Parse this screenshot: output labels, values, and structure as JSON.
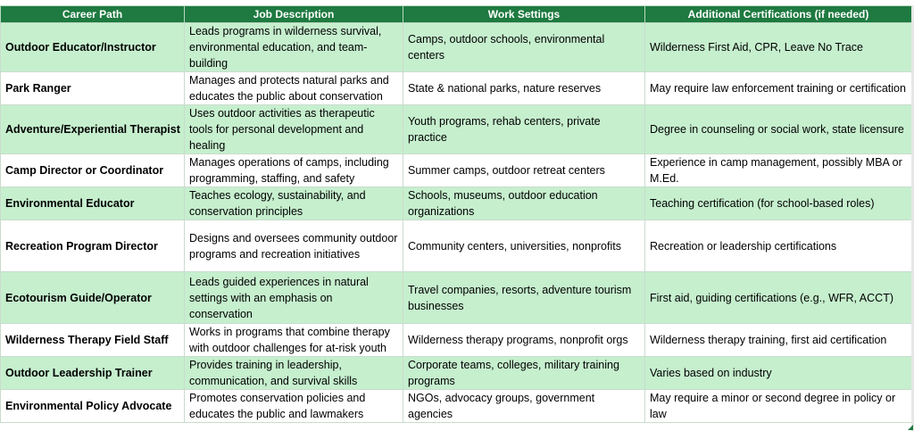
{
  "table": {
    "headers": [
      "Career Path",
      "Job Description",
      "Work Settings",
      "Additional Certifications (if needed)"
    ],
    "rows": [
      {
        "career": "Outdoor Educator/Instructor",
        "description": "Leads programs in wilderness survival, environmental education, and team-building",
        "settings": "Camps, outdoor schools, environmental centers",
        "certifications": "Wilderness First Aid, CPR, Leave No Trace",
        "shade": "green"
      },
      {
        "career": "Park Ranger",
        "description": "Manages and protects natural parks and educates the public about conservation",
        "settings": "State & national parks, nature reserves",
        "certifications": "May require law enforcement training or certification",
        "shade": "white"
      },
      {
        "career": "Adventure/Experiential Therapist",
        "description": "Uses outdoor activities as therapeutic tools for personal development and healing",
        "settings": "Youth programs, rehab centers, private practice",
        "certifications": "Degree in counseling or social work, state licensure",
        "shade": "green"
      },
      {
        "career": "Camp Director or Coordinator",
        "description": "Manages operations of camps, including programming, staffing, and safety",
        "settings": "Summer camps, outdoor retreat centers",
        "certifications": "Experience in camp management, possibly MBA or M.Ed.",
        "shade": "white"
      },
      {
        "career": "Environmental Educator",
        "description": "Teaches ecology, sustainability, and conservation principles",
        "settings": "Schools, museums, outdoor education organizations",
        "certifications": "Teaching certification (for school-based roles)",
        "shade": "green"
      },
      {
        "career": "Recreation Program Director",
        "description": "Designs and oversees community outdoor programs and recreation initiatives",
        "settings": "Community centers, universities, nonprofits",
        "certifications": "Recreation or leadership certifications",
        "shade": "white"
      },
      {
        "career": "Ecotourism Guide/Operator",
        "description": "Leads guided experiences in natural settings with an emphasis on conservation",
        "settings": "Travel companies, resorts, adventure tourism businesses",
        "certifications": "First aid, guiding certifications (e.g., WFR, ACCT)",
        "shade": "green"
      },
      {
        "career": "Wilderness Therapy Field Staff",
        "description": "Works in programs that combine therapy with outdoor challenges for at-risk youth",
        "settings": "Wilderness therapy programs, nonprofit orgs",
        "certifications": "Wilderness therapy training, first aid certification",
        "shade": "white"
      },
      {
        "career": "Outdoor Leadership Trainer",
        "description": "Provides training in leadership, communication, and survival skills",
        "settings": "Corporate teams, colleges, military training programs",
        "certifications": "Varies based on industry",
        "shade": "green"
      },
      {
        "career": "Environmental Policy Advocate",
        "description": "Promotes conservation policies and educates the public and lawmakers",
        "settings": "NGOs, advocacy groups, government agencies",
        "certifications": "May require a minor or second degree in policy or law",
        "shade": "white"
      }
    ]
  },
  "colors": {
    "header_bg": "#1e7a40",
    "row_green": "#c6efce",
    "row_white": "#ffffff"
  }
}
